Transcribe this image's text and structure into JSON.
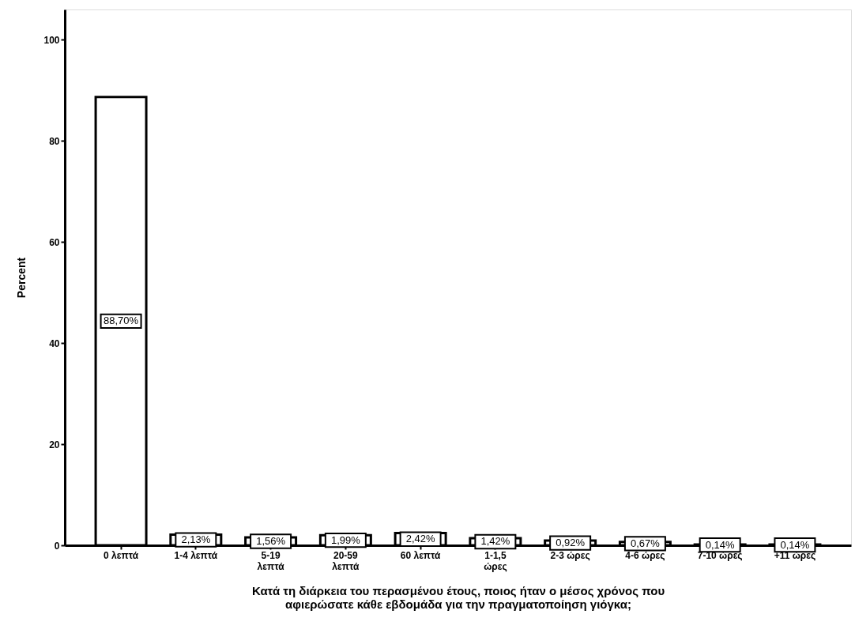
{
  "chart_data": {
    "type": "bar",
    "categories": [
      "0 λεπτά",
      "1-4 λεπτά",
      "5-19\nλεπτά",
      "20-59\nλεπτά",
      "60 λεπτά",
      "1-1,5\nώρες",
      "2-3 ώρες",
      "4-6 ώρες",
      "7-10 ώρες",
      "+11 ώρες"
    ],
    "values": [
      88.7,
      2.13,
      1.56,
      1.99,
      2.42,
      1.42,
      0.92,
      0.67,
      0.14,
      0.14
    ],
    "value_labels": [
      "88,70%",
      "2,13%",
      "1,56%",
      "1,99%",
      "2,42%",
      "1,42%",
      "0,92%",
      "0,67%",
      "0,14%",
      "0,14%"
    ],
    "color": "#ffffff",
    "xlabel": "Κατά τη διάρκεια του περασμένου έτους, ποιος ήταν ο μέσος χρόνος που αφιερώσατε κάθε εβδομάδα για την πραγματοποίηση γιόγκα;",
    "ylabel": "Percent",
    "ylim": [
      0,
      106
    ],
    "yticks": [
      0,
      20,
      40,
      60,
      80,
      100
    ],
    "grid": false
  }
}
